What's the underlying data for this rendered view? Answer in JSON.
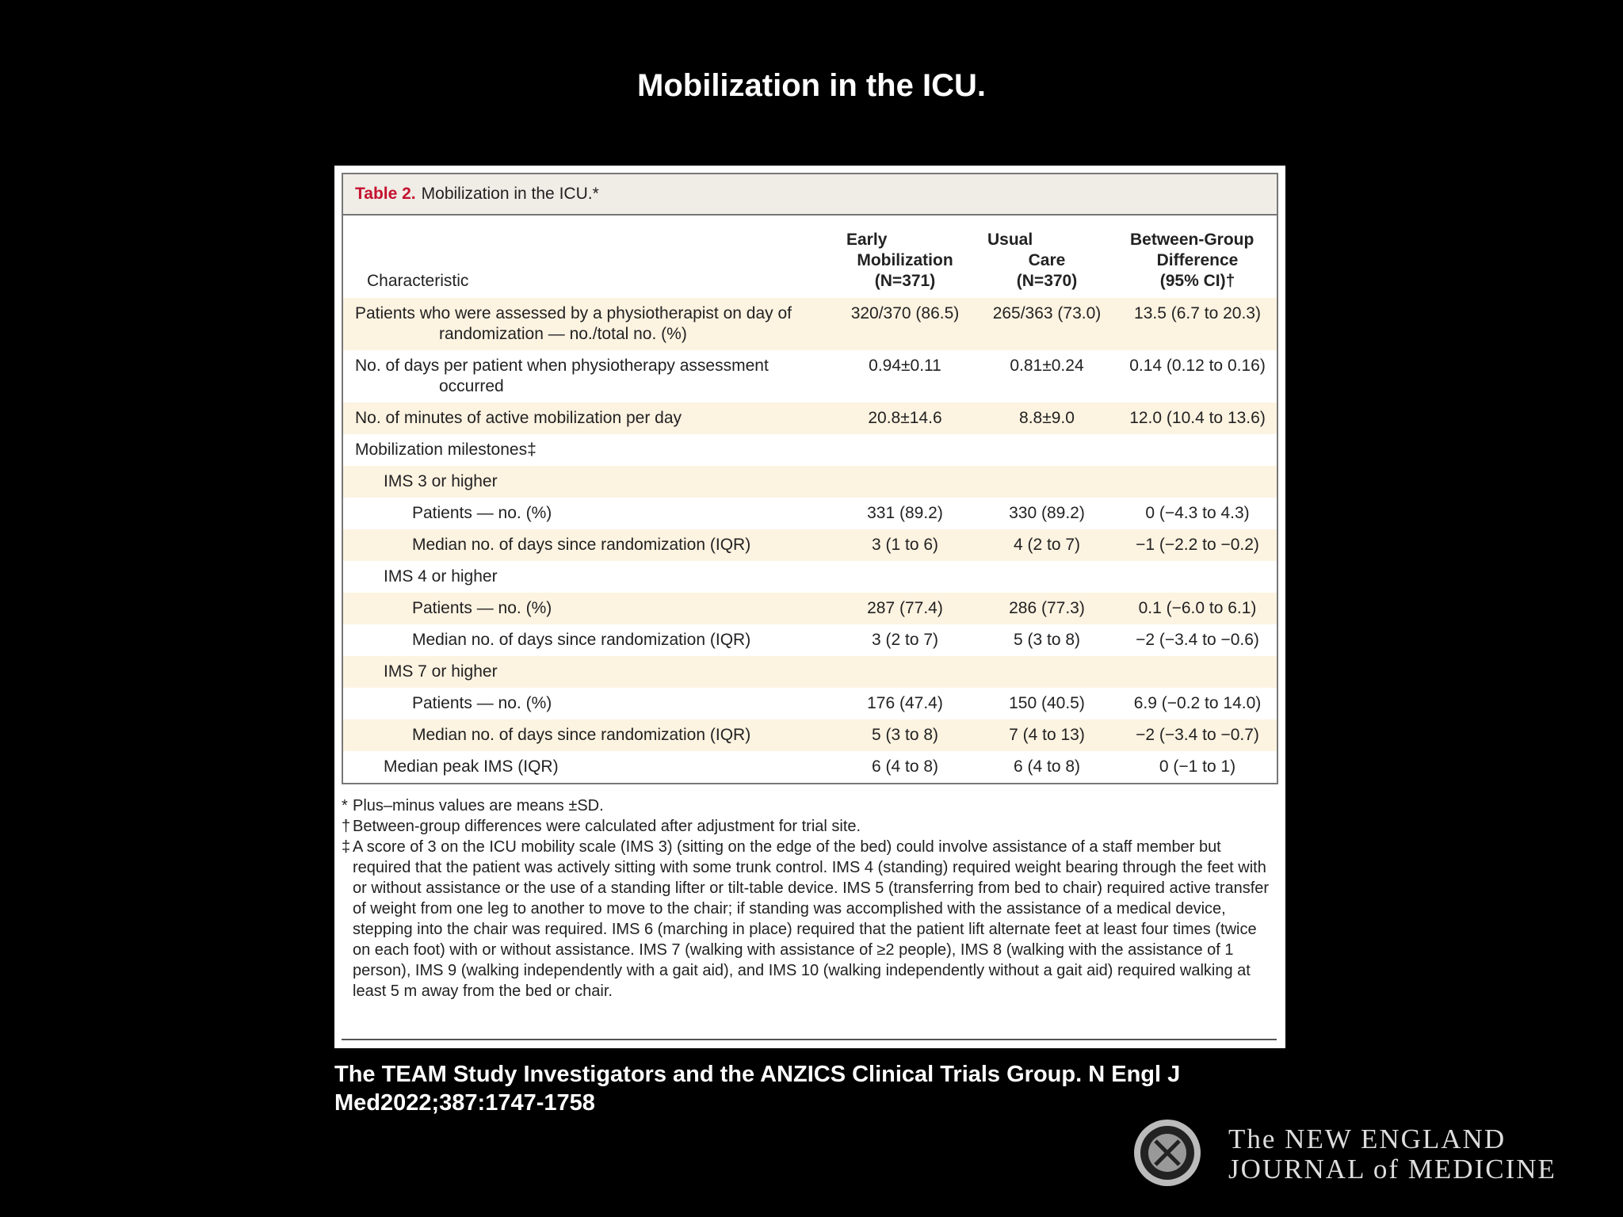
{
  "title": "Mobilization in the ICU.",
  "table": {
    "label": "Table 2.",
    "caption": "Mobilization in the ICU.*",
    "header": [
      [
        "Characteristic"
      ],
      [
        "Early",
        "Mobilization",
        "(N=371)"
      ],
      [
        "Usual",
        "Care",
        "(N=370)"
      ],
      [
        "Between-Group",
        "Difference",
        "(95% CI)†"
      ]
    ],
    "rows": [
      [
        "Patients who were assessed by a physiotherapist on day of randomization — no./total no. (%)",
        "320/370 (86.5)",
        "265/363 (73.0)",
        "13.5 (6.7 to 20.3)"
      ],
      [
        "No. of days per patient when physiotherapy assessment occurred",
        "0.94±0.11",
        "0.81±0.24",
        "0.14 (0.12 to 0.16)"
      ],
      [
        "No. of minutes of active mobilization per day",
        "20.8±14.6",
        "8.8±9.0",
        "12.0 (10.4 to 13.6)"
      ],
      [
        "Mobilization milestones‡"
      ],
      [
        "IMS 3 or higher"
      ],
      [
        "Patients — no. (%)",
        "331 (89.2)",
        "330 (89.2)",
        "0 (−4.3 to 4.3)"
      ],
      [
        "Median no. of days since randomization (IQR)",
        "3 (1 to 6)",
        "4 (2 to 7)",
        "−1 (−2.2 to −0.2)"
      ],
      [
        "IMS 4 or higher"
      ],
      [
        "Patients — no. (%)",
        "287 (77.4)",
        "286 (77.3)",
        "0.1 (−6.0 to 6.1)"
      ],
      [
        "Median no. of days since randomization (IQR)",
        "3 (2 to 7)",
        "5 (3 to 8)",
        "−2 (−3.4 to −0.6)"
      ],
      [
        "IMS 7 or higher"
      ],
      [
        "Patients — no. (%)",
        "176 (47.4)",
        "150 (40.5)",
        "6.9 (−0.2 to 14.0)"
      ],
      [
        "Median no. of days since randomization (IQR)",
        "5 (3 to 8)",
        "7 (4 to 13)",
        "−2 (−3.4 to −0.7)"
      ],
      [
        "Median peak IMS (IQR)",
        "6 (4 to 8)",
        "6 (4 to 8)",
        "0 (−1 to 1)"
      ]
    ],
    "footnotes": [
      [
        "*",
        "Plus–minus values are means ±SD."
      ],
      [
        "†",
        "Between-group differences were calculated after adjustment for trial site."
      ],
      [
        "‡",
        "A score of 3 on the ICU mobility scale (IMS 3) (sitting on the edge of the bed) could involve assistance of a staff member but required that the patient was actively sitting with some trunk control. IMS 4 (standing) required weight bearing through the feet with or without assistance or the use of a standing lifter or tilt-table device. IMS 5 (transferring from bed to chair) required active transfer of weight from one leg to another to move to the chair; if standing was accomplished with the assistance of a medical device, stepping into the chair was required. IMS 6 (marching in place) required that the patient lift alternate feet at least four times (twice on each foot) with or without assistance. IMS 7 (walking with assistance of ≥2 people), IMS 8 (walking with the assistance of 1 person), IMS 9 (walking independently with a gait aid), and IMS 10 (walking independently without a gait aid) required walking at least 5 m away from the bed or chair."
      ]
    ]
  },
  "citation": "The TEAM Study Investigators and the ANZICS Clinical Trials Group. N Engl J Med2022;387:1747-1758",
  "logo": {
    "line1": "The NEW ENGLAND",
    "line2": "JOURNAL of MEDICINE"
  }
}
